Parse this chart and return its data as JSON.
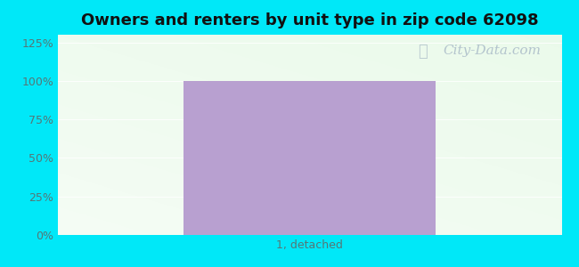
{
  "title": "Owners and renters by unit type in zip code 62098",
  "categories": [
    "1, detached"
  ],
  "values": [
    100
  ],
  "bar_color": "#b8a0d0",
  "bar_width": 0.5,
  "yticks": [
    0,
    25,
    50,
    75,
    100,
    125
  ],
  "ytick_labels": [
    "0%",
    "25%",
    "50%",
    "75%",
    "100%",
    "125%"
  ],
  "ylim": [
    0,
    130
  ],
  "title_fontsize": 13,
  "tick_fontsize": 9,
  "xlabel_fontsize": 9,
  "outer_bg_color": "#00e8f8",
  "watermark_text": "City-Data.com",
  "watermark_color": "#aabbc8",
  "watermark_fontsize": 11,
  "grid_color": "#e0ece0",
  "tick_color": "#557777"
}
